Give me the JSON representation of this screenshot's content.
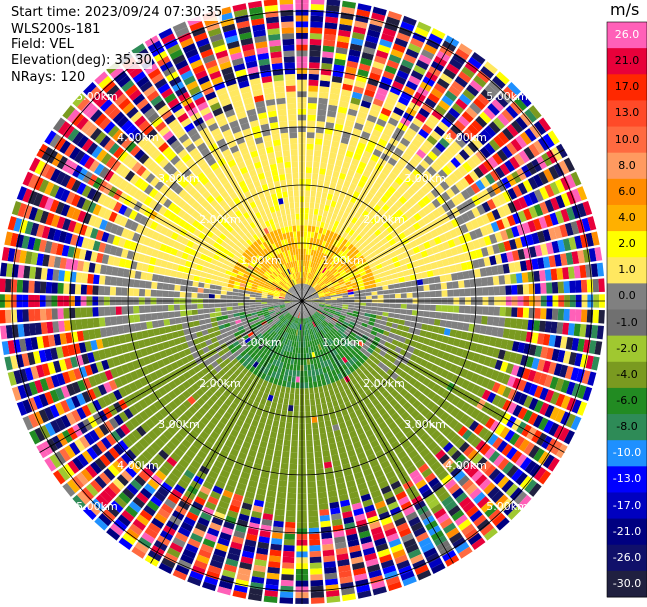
{
  "header": {
    "start_time": "Start time: 2023/09/24 07:30:35",
    "instrument": "WLS200s-181",
    "field": "Field: VEL",
    "elevation": "Elevation(deg): 35.30",
    "nrays": "NRays: 120"
  },
  "colorbar": {
    "unit": "m/s",
    "labels": [
      "26.0",
      "21.0",
      "17.0",
      "13.0",
      "10.0",
      "8.0",
      "6.0",
      "4.0",
      "2.0",
      "1.0",
      "0.0",
      "-1.0",
      "-2.0",
      "-4.0",
      "-6.0",
      "-8.0",
      "-10.0",
      "-13.0",
      "-17.0",
      "-21.0",
      "-26.0",
      "-30.0"
    ],
    "colors": [
      "#ff60b8",
      "#e8003a",
      "#ff2800",
      "#ff4a28",
      "#ff6a40",
      "#ff9a60",
      "#ff8c00",
      "#ffb000",
      "#ffff00",
      "#ffe860",
      "#808080",
      "#707070",
      "#a0c830",
      "#7a9a20",
      "#228b22",
      "#2e8b57",
      "#1e90ff",
      "#0000ff",
      "#0000c0",
      "#000080",
      "#10106a",
      "#202040"
    ]
  },
  "chart_data": {
    "type": "heatmap",
    "projection": "polar PPI (plan position indicator)",
    "field": "VEL",
    "units": "m/s",
    "nrays": 120,
    "elevation_deg": 35.3,
    "range_rings_km": [
      "1.00km",
      "2.00km",
      "3.00km",
      "4.00km",
      "5.00km"
    ],
    "rings": [
      1,
      2,
      3,
      4,
      5
    ],
    "spokes_deg": [
      0,
      30,
      60,
      90,
      120,
      150,
      180,
      210,
      240,
      270,
      300,
      330
    ],
    "vmin": -30.0,
    "vmax": 30.0,
    "colorbar_ticks": [
      26.0,
      21.0,
      17.0,
      13.0,
      10.0,
      8.0,
      6.0,
      4.0,
      2.0,
      1.0,
      0.0,
      -1.0,
      -2.0,
      -4.0,
      -6.0,
      -8.0,
      -10.0,
      -13.0,
      -17.0,
      -21.0,
      -26.0,
      -30.0
    ],
    "pattern": {
      "north_inner": "positive velocities 1 to 6 m/s (yellow / orange)",
      "south_inner": "negative velocities -2 to -8 m/s (light green / green)",
      "near_center_and_east_west": "near zero (grey)",
      "outer_range": "noise across full color range"
    }
  }
}
